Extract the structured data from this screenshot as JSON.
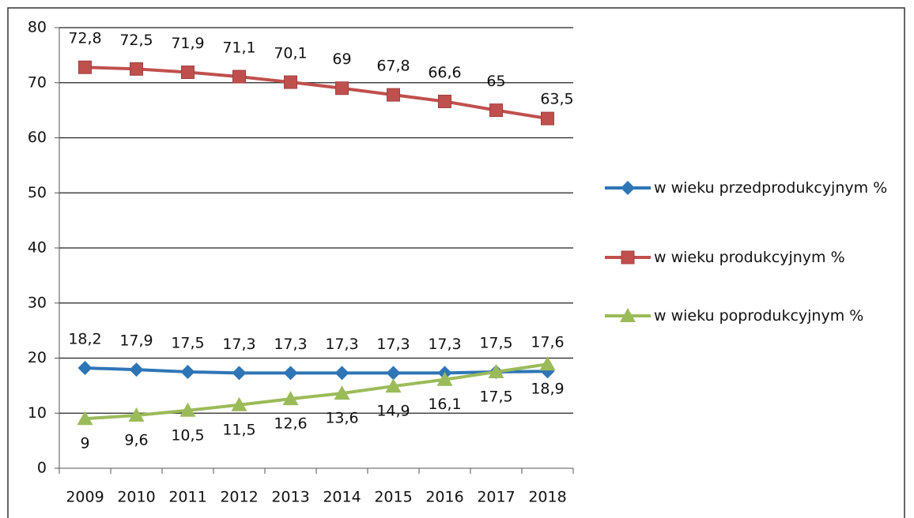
{
  "chart_data": {
    "type": "line",
    "categories": [
      "2009",
      "2010",
      "2011",
      "2012",
      "2013",
      "2014",
      "2015",
      "2016",
      "2017",
      "2018"
    ],
    "series": [
      {
        "name": "w wieku przedprodukcyjnym %",
        "color": "#2e75b6",
        "values": [
          18.2,
          17.9,
          17.5,
          17.3,
          17.3,
          17.3,
          17.3,
          17.3,
          17.5,
          17.6
        ],
        "value_labels": [
          "18,2",
          "17,9",
          "17,5",
          "17,3",
          "17,3",
          "17,3",
          "17,3",
          "17,3",
          "17,5",
          "17,6"
        ],
        "marker": "diamond",
        "label_position": "above"
      },
      {
        "name": "w wieku produkcyjnym %",
        "color": "#c0504d",
        "values": [
          72.8,
          72.5,
          71.9,
          71.1,
          70.1,
          69,
          67.8,
          66.6,
          65,
          63.5
        ],
        "value_labels": [
          "72,8",
          "72,5",
          "71,9",
          "71,1",
          "70,1",
          "69",
          "67,8",
          "66,6",
          "65",
          "63,5"
        ],
        "marker": "square",
        "label_position": "above"
      },
      {
        "name": "w wieku poprodukcyjnym %",
        "color": "#9bbb59",
        "values": [
          9,
          9.6,
          10.5,
          11.5,
          12.6,
          13.6,
          14.9,
          16.1,
          17.5,
          18.9
        ],
        "value_labels": [
          "9",
          "9,6",
          "10,5",
          "11,5",
          "12,6",
          "13,6",
          "14,9",
          "16,1",
          "17,5",
          "18,9"
        ],
        "marker": "triangle",
        "label_position": "below"
      }
    ],
    "ylim": [
      0,
      80
    ],
    "yticks": [
      0,
      10,
      20,
      30,
      40,
      50,
      60,
      70,
      80
    ],
    "grid": true,
    "legend": "right"
  }
}
